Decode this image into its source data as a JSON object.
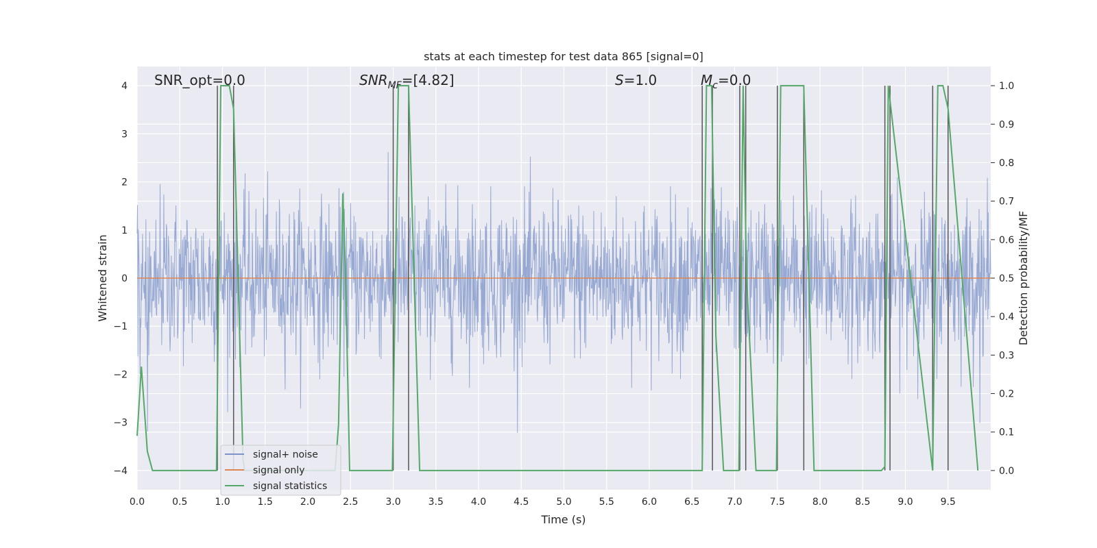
{
  "chart_data": {
    "type": "line",
    "title": "stats at each timestep for test data 865 [signal=0]",
    "xlabel": "Time (s)",
    "ylabel": "Whitened strain",
    "y2label": "Detection probability/MF",
    "xlim": [
      0.0,
      10.0
    ],
    "ylim": [
      -4.4,
      4.4
    ],
    "y2lim": [
      -0.05,
      1.05
    ],
    "x_ticks": [
      0.0,
      0.5,
      1.0,
      1.5,
      2.0,
      2.5,
      3.0,
      3.5,
      4.0,
      4.5,
      5.0,
      5.5,
      6.0,
      6.5,
      7.0,
      7.5,
      8.0,
      8.5,
      9.0,
      9.5
    ],
    "x_tick_labels": [
      "0.0",
      "0.5",
      "1.0",
      "1.5",
      "2.0",
      "2.5",
      "3.0",
      "3.5",
      "4.0",
      "4.5",
      "5.0",
      "5.5",
      "6.0",
      "6.5",
      "7.0",
      "7.5",
      "8.0",
      "8.5",
      "9.0",
      "9.5"
    ],
    "y_ticks": [
      -4,
      -3,
      -2,
      -1,
      0,
      1,
      2,
      3,
      4
    ],
    "y_tick_labels": [
      "−4",
      "−3",
      "−2",
      "−1",
      "0",
      "1",
      "2",
      "3",
      "4"
    ],
    "y2_ticks": [
      0.0,
      0.1,
      0.2,
      0.3,
      0.4,
      0.5,
      0.6,
      0.7,
      0.8,
      0.9,
      1.0
    ],
    "y2_tick_labels": [
      "0.0",
      "0.1",
      "0.2",
      "0.3",
      "0.4",
      "0.5",
      "0.6",
      "0.7",
      "0.8",
      "0.9",
      "1.0"
    ],
    "grid": true,
    "legend_position": "lower-left",
    "annotations": {
      "snr_opt": "SNR_opt=0.0",
      "snr_mf_base": "SNR",
      "snr_mf_sub": "MF",
      "snr_mf_value": "=[4.82]",
      "s_base": "S",
      "s_value": "=1.0",
      "mc_base": "M",
      "mc_sub": "c",
      "mc_value": "=0.0"
    },
    "series": [
      {
        "name": "signal+ noise",
        "axis": "left",
        "color": "#7b93c8",
        "style": "noise",
        "sigma": 0.8,
        "samples": 2048
      },
      {
        "name": "signal only",
        "axis": "left",
        "color": "#dd8452",
        "x": [
          0.0,
          10.0
        ],
        "y": [
          0.0,
          0.0
        ]
      },
      {
        "name": "signal statistics",
        "axis": "right",
        "color": "#55a868",
        "x": [
          0.0,
          0.05,
          0.12,
          0.18,
          0.93,
          0.98,
          1.08,
          1.13,
          1.24,
          1.26,
          2.32,
          2.36,
          2.41,
          2.44,
          2.49,
          2.52,
          2.99,
          3.06,
          3.18,
          3.31,
          6.62,
          6.67,
          6.73,
          6.78,
          6.87,
          7.05,
          7.1,
          7.14,
          7.25,
          7.49,
          7.54,
          7.81,
          7.93,
          8.72,
          8.76,
          8.8,
          9.32,
          9.38,
          9.44,
          9.5,
          9.85
        ],
        "y": [
          0.09,
          0.27,
          0.05,
          0.0,
          0.0,
          1.0,
          1.0,
          0.94,
          0.03,
          0.0,
          0.0,
          0.12,
          0.72,
          0.52,
          0.0,
          0.0,
          0.0,
          1.0,
          1.0,
          0.0,
          0.0,
          1.0,
          1.0,
          0.35,
          0.0,
          0.0,
          1.0,
          0.5,
          0.0,
          0.0,
          1.0,
          1.0,
          0.0,
          0.0,
          0.01,
          1.0,
          0.0,
          1.0,
          1.0,
          0.94,
          0.0
        ]
      }
    ],
    "vertical_markers_x": [
      0.94,
      1.13,
      3.0,
      3.18,
      6.62,
      6.74,
      7.06,
      7.13,
      7.5,
      7.81,
      8.76,
      8.82,
      9.32,
      9.5
    ]
  }
}
